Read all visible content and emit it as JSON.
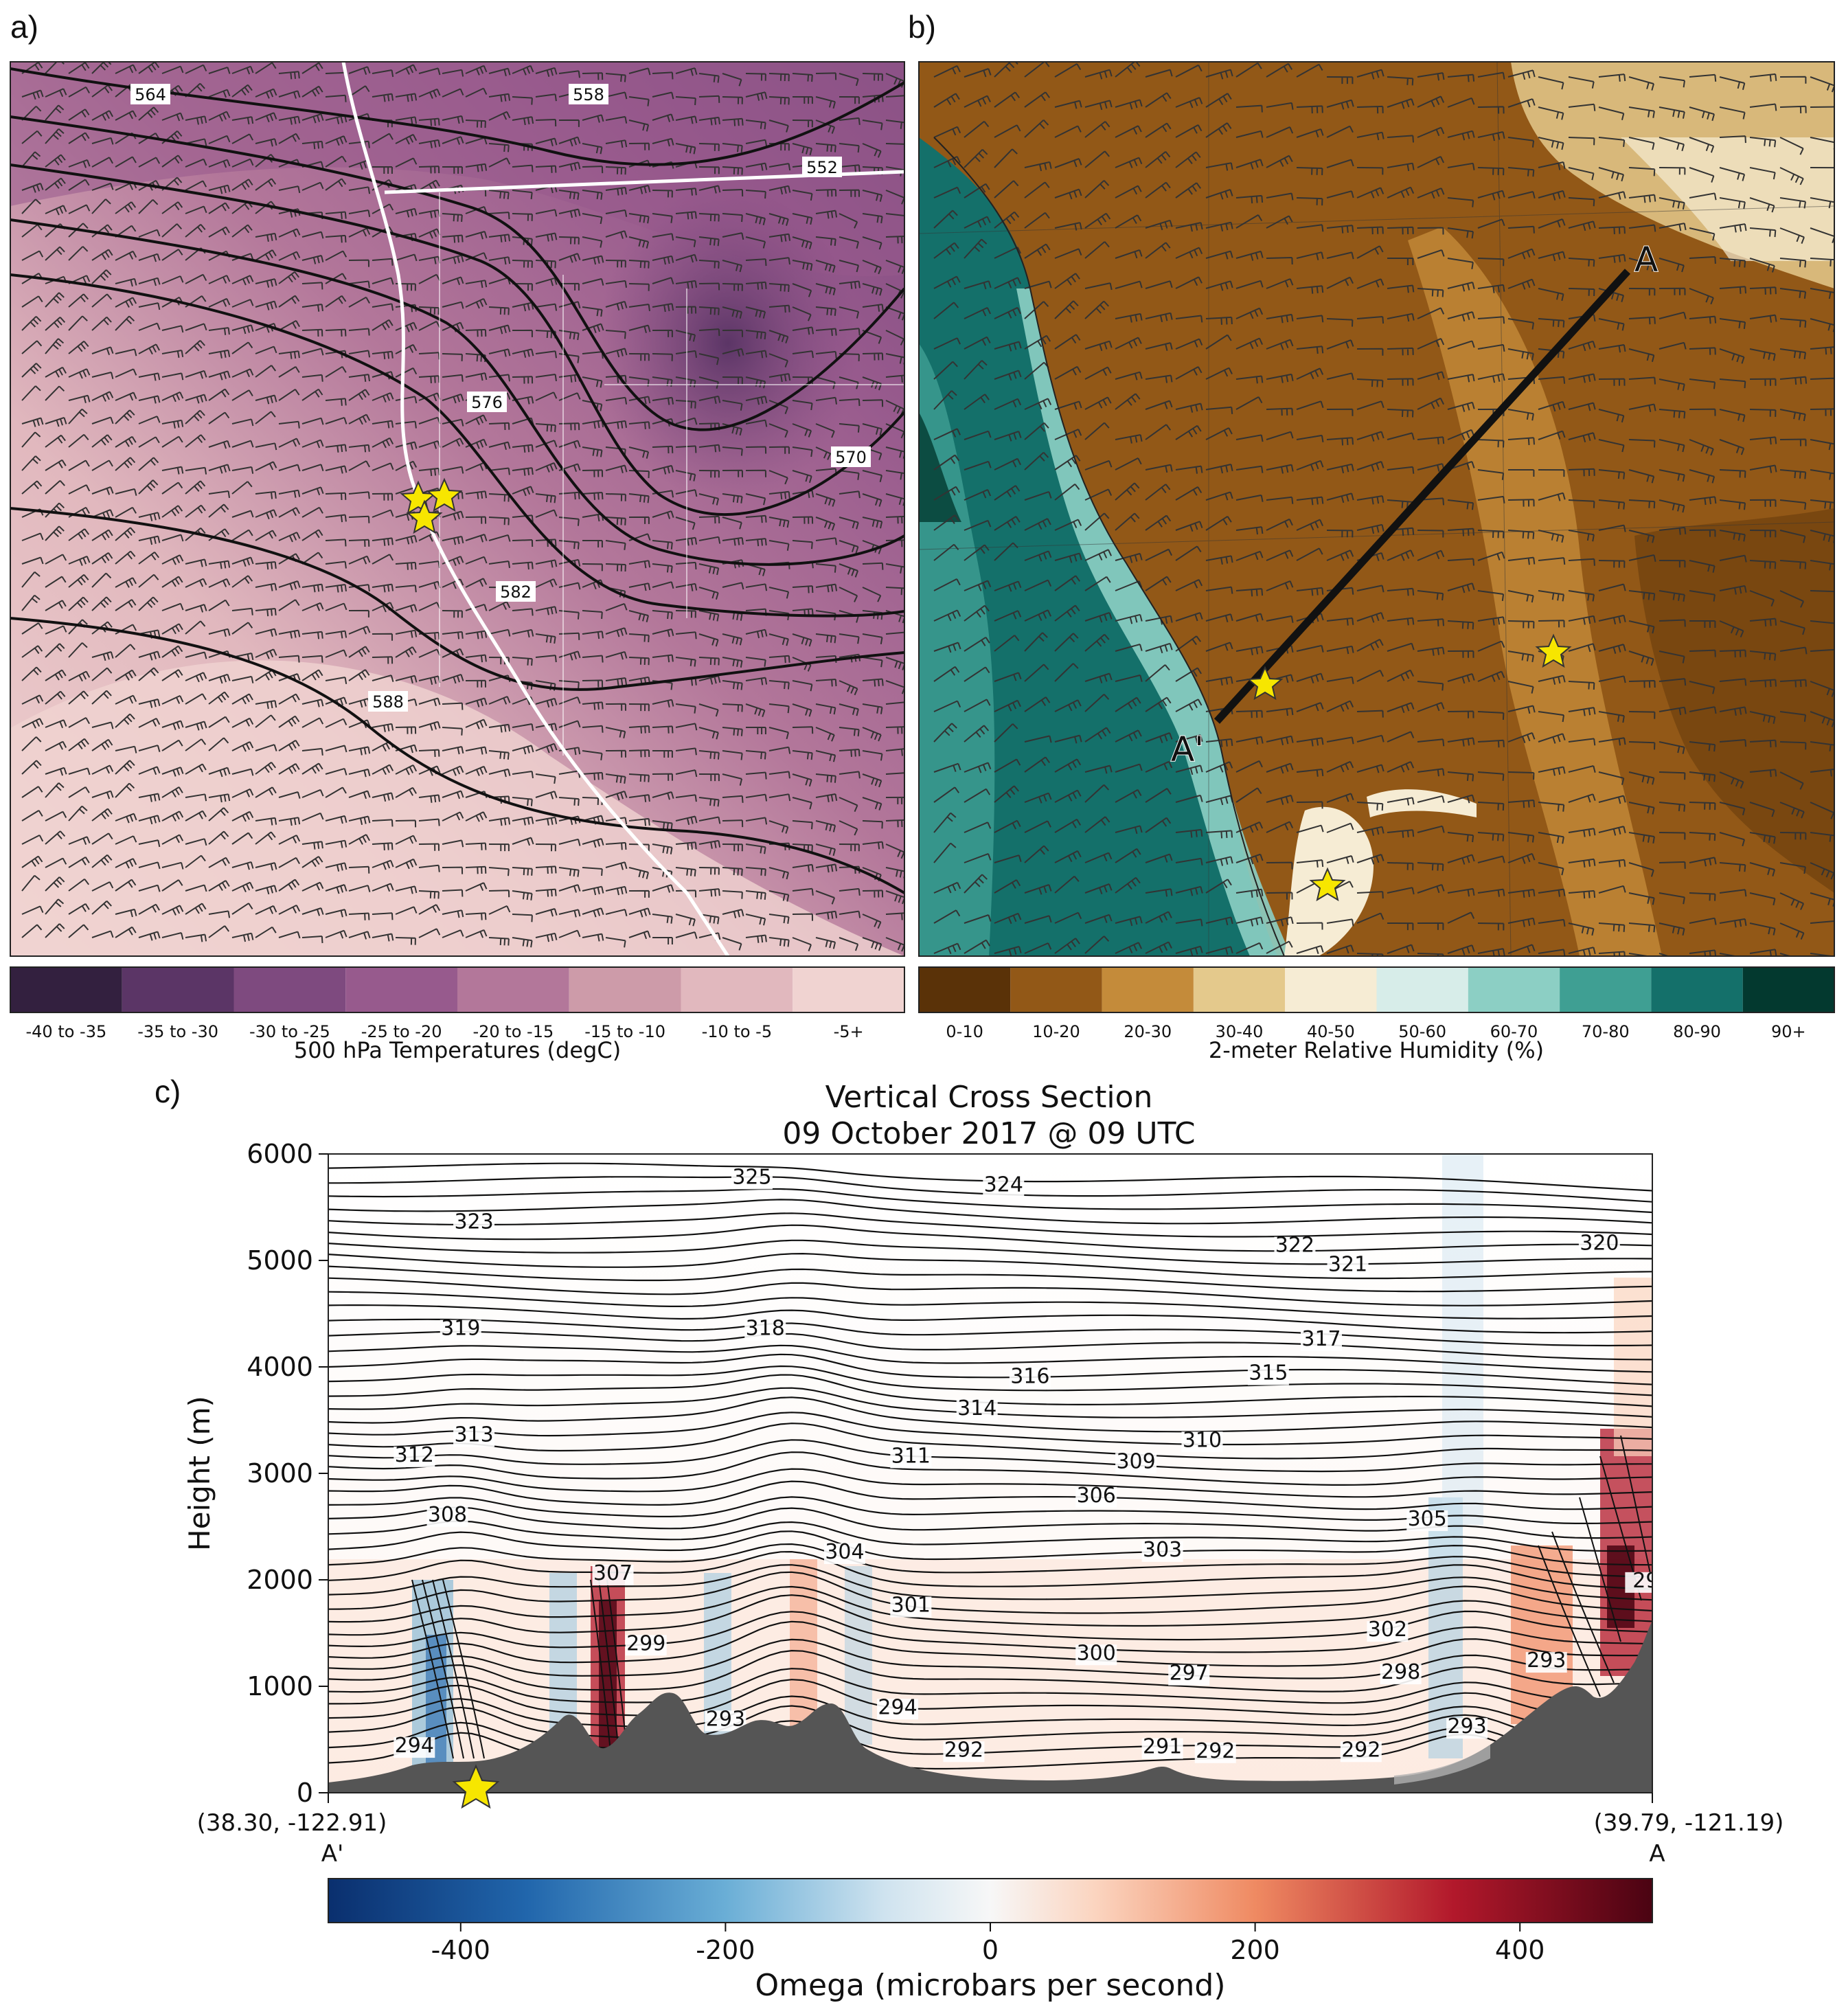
{
  "chart_data": [
    {
      "panel": "a)",
      "type": "heatmap",
      "colorbar_title": "500 hPa Temperatures (degC)",
      "colorbar_categories": [
        "-40 to -35",
        "-35 to -30",
        "-30 to -25",
        "-25 to -20",
        "-20 to -15",
        "-15 to -10",
        "-10 to -5",
        "-5+"
      ],
      "colorbar_colors": [
        "#33203f",
        "#5b3566",
        "#7e4a7f",
        "#975a8d",
        "#b3779a",
        "#cd9ba9",
        "#e1b8be",
        "#f0d3d1"
      ],
      "contour_labels": [
        "564",
        "558",
        "552",
        "576",
        "570",
        "582",
        "588"
      ]
    },
    {
      "panel": "b)",
      "type": "heatmap",
      "colorbar_title": "2-meter Relative Humidity (%)",
      "colorbar_categories": [
        "0-10",
        "10-20",
        "20-30",
        "30-40",
        "40-50",
        "50-60",
        "60-70",
        "70-80",
        "80-90",
        "90+"
      ],
      "colorbar_colors": [
        "#5a3208",
        "#925817",
        "#c48b3a",
        "#e4c98c",
        "#f6ecd4",
        "#d7ede9",
        "#8ccfc4",
        "#3f9f93",
        "#14706a",
        "#03392f"
      ],
      "section_endpoints": [
        "A",
        "A'"
      ]
    },
    {
      "panel": "c)",
      "type": "heatmap",
      "title": "Vertical Cross Section",
      "subtitle": "09 October 2017 @ 09 UTC",
      "ylabel": "Height (m)",
      "ylim": [
        0,
        6000
      ],
      "yticks": [
        "0",
        "1000",
        "2000",
        "3000",
        "4000",
        "5000",
        "6000"
      ],
      "left_endpoint": {
        "coords": "(38.30, -122.91)",
        "label": "A'"
      },
      "right_endpoint": {
        "coords": "(39.79, -121.19)",
        "label": "A"
      },
      "theta_labels": [
        {
          "text": "325",
          "x": 0.32,
          "y": 5720
        },
        {
          "text": "324",
          "x": 0.51,
          "y": 5650
        },
        {
          "text": "323",
          "x": 0.11,
          "y": 5300
        },
        {
          "text": "322",
          "x": 0.73,
          "y": 5080
        },
        {
          "text": "321",
          "x": 0.77,
          "y": 4900
        },
        {
          "text": "320",
          "x": 0.96,
          "y": 5100
        },
        {
          "text": "319",
          "x": 0.1,
          "y": 4300
        },
        {
          "text": "318",
          "x": 0.33,
          "y": 4300
        },
        {
          "text": "317",
          "x": 0.75,
          "y": 4200
        },
        {
          "text": "316",
          "x": 0.53,
          "y": 3850
        },
        {
          "text": "315",
          "x": 0.71,
          "y": 3880
        },
        {
          "text": "314",
          "x": 0.49,
          "y": 3550
        },
        {
          "text": "313",
          "x": 0.11,
          "y": 3300
        },
        {
          "text": "312",
          "x": 0.065,
          "y": 3110
        },
        {
          "text": "311",
          "x": 0.44,
          "y": 3100
        },
        {
          "text": "310",
          "x": 0.66,
          "y": 3250
        },
        {
          "text": "309",
          "x": 0.61,
          "y": 3050
        },
        {
          "text": "308",
          "x": 0.09,
          "y": 2550
        },
        {
          "text": "306",
          "x": 0.58,
          "y": 2730
        },
        {
          "text": "305",
          "x": 0.83,
          "y": 2510
        },
        {
          "text": "304",
          "x": 0.39,
          "y": 2200
        },
        {
          "text": "303",
          "x": 0.63,
          "y": 2220
        },
        {
          "text": "307",
          "x": 0.215,
          "y": 2000
        },
        {
          "text": "301",
          "x": 0.44,
          "y": 1700
        },
        {
          "text": "302",
          "x": 0.8,
          "y": 1470
        },
        {
          "text": "299",
          "x": 0.24,
          "y": 1340
        },
        {
          "text": "300",
          "x": 0.58,
          "y": 1250
        },
        {
          "text": "297",
          "x": 0.65,
          "y": 1060
        },
        {
          "text": "298",
          "x": 0.81,
          "y": 1070
        },
        {
          "text": "293",
          "x": 0.92,
          "y": 1180
        },
        {
          "text": "293",
          "x": 0.3,
          "y": 630
        },
        {
          "text": "294",
          "x": 0.43,
          "y": 740
        },
        {
          "text": "293",
          "x": 0.86,
          "y": 560
        },
        {
          "text": "294",
          "x": 0.065,
          "y": 380
        },
        {
          "text": "292",
          "x": 0.48,
          "y": 340
        },
        {
          "text": "291",
          "x": 0.63,
          "y": 370
        },
        {
          "text": "292",
          "x": 0.67,
          "y": 330
        },
        {
          "text": "292",
          "x": 0.78,
          "y": 340
        },
        {
          "text": "29",
          "x": 0.995,
          "y": 1930
        }
      ],
      "omega_colorbar": {
        "title": "Omega (microbars per second)",
        "range": [
          -500,
          500
        ],
        "ticks": [
          "-400",
          "-200",
          "0",
          "200",
          "400"
        ]
      }
    }
  ]
}
